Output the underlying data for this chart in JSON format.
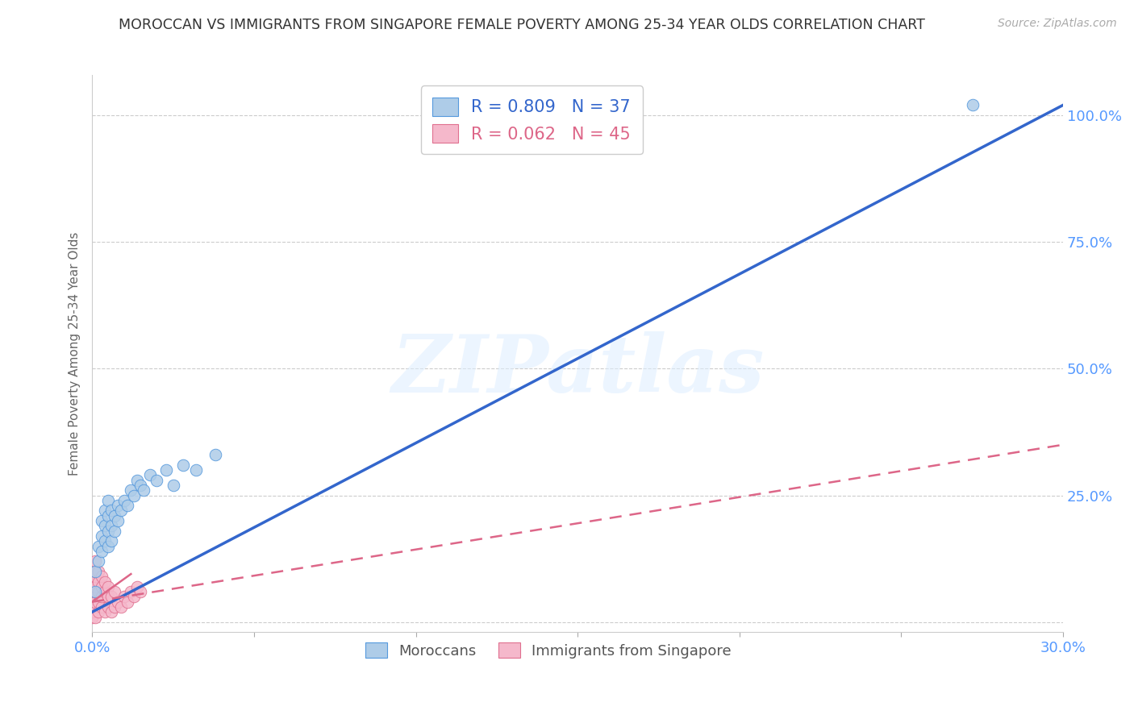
{
  "title": "MOROCCAN VS IMMIGRANTS FROM SINGAPORE FEMALE POVERTY AMONG 25-34 YEAR OLDS CORRELATION CHART",
  "source": "Source: ZipAtlas.com",
  "ylabel": "Female Poverty Among 25-34 Year Olds",
  "xlim": [
    0.0,
    0.3
  ],
  "ylim": [
    -0.02,
    1.08
  ],
  "yticks": [
    0.0,
    0.25,
    0.5,
    0.75,
    1.0
  ],
  "ytick_labels": [
    "",
    "25.0%",
    "50.0%",
    "75.0%",
    "100.0%"
  ],
  "moroccan_color": "#aecce8",
  "singapore_color": "#f5b8cb",
  "moroccan_edge_color": "#5599dd",
  "singapore_edge_color": "#e07090",
  "moroccan_line_color": "#3366cc",
  "singapore_line_color": "#dd6688",
  "legend_moroccan_R": "0.809",
  "legend_moroccan_N": "37",
  "legend_singapore_R": "0.062",
  "legend_singapore_N": "45",
  "title_color": "#333333",
  "axis_label_color": "#5599ff",
  "watermark_text": "ZIPatlas",
  "moroccan_x": [
    0.001,
    0.001,
    0.002,
    0.002,
    0.003,
    0.003,
    0.003,
    0.004,
    0.004,
    0.004,
    0.005,
    0.005,
    0.005,
    0.005,
    0.006,
    0.006,
    0.006,
    0.007,
    0.007,
    0.008,
    0.008,
    0.009,
    0.01,
    0.011,
    0.012,
    0.013,
    0.014,
    0.015,
    0.016,
    0.018,
    0.02,
    0.023,
    0.025,
    0.028,
    0.032,
    0.038,
    0.272
  ],
  "moroccan_y": [
    0.06,
    0.1,
    0.12,
    0.15,
    0.14,
    0.17,
    0.2,
    0.16,
    0.19,
    0.22,
    0.15,
    0.18,
    0.21,
    0.24,
    0.16,
    0.19,
    0.22,
    0.18,
    0.21,
    0.2,
    0.23,
    0.22,
    0.24,
    0.23,
    0.26,
    0.25,
    0.28,
    0.27,
    0.26,
    0.29,
    0.28,
    0.3,
    0.27,
    0.31,
    0.3,
    0.33,
    1.02
  ],
  "singapore_x": [
    0.0,
    0.0,
    0.0,
    0.0,
    0.0,
    0.0,
    0.0,
    0.0,
    0.0,
    0.0,
    0.001,
    0.001,
    0.001,
    0.001,
    0.001,
    0.001,
    0.001,
    0.001,
    0.002,
    0.002,
    0.002,
    0.002,
    0.002,
    0.003,
    0.003,
    0.003,
    0.003,
    0.004,
    0.004,
    0.004,
    0.005,
    0.005,
    0.005,
    0.006,
    0.006,
    0.007,
    0.007,
    0.008,
    0.009,
    0.01,
    0.011,
    0.012,
    0.013,
    0.014,
    0.015
  ],
  "singapore_y": [
    0.01,
    0.02,
    0.03,
    0.04,
    0.05,
    0.06,
    0.07,
    0.08,
    0.09,
    0.1,
    0.01,
    0.03,
    0.04,
    0.06,
    0.07,
    0.09,
    0.1,
    0.12,
    0.02,
    0.04,
    0.06,
    0.08,
    0.1,
    0.03,
    0.05,
    0.07,
    0.09,
    0.02,
    0.06,
    0.08,
    0.03,
    0.05,
    0.07,
    0.02,
    0.05,
    0.03,
    0.06,
    0.04,
    0.03,
    0.05,
    0.04,
    0.06,
    0.05,
    0.07,
    0.06
  ],
  "moroccan_trend_x": [
    0.0,
    0.3
  ],
  "moroccan_trend_y": [
    0.02,
    1.02
  ],
  "singapore_trend_x": [
    0.0,
    0.3
  ],
  "singapore_trend_y": [
    0.04,
    0.35
  ]
}
